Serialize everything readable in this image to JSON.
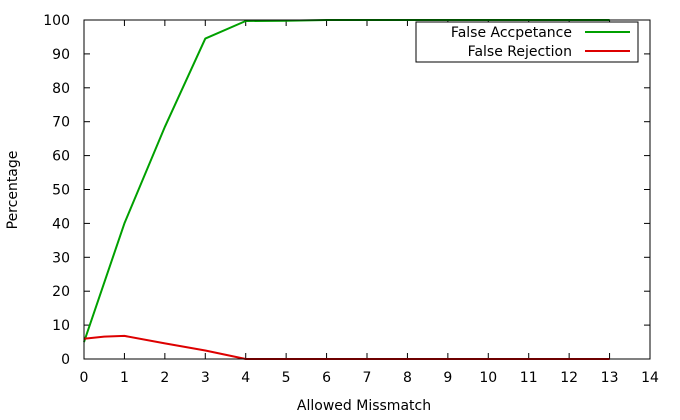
{
  "chart_data": {
    "type": "line",
    "title": "",
    "xlabel": "Allowed Missmatch",
    "ylabel": "Percentage",
    "xlim": [
      0,
      14
    ],
    "ylim": [
      0,
      100
    ],
    "xticks": [
      0,
      1,
      2,
      3,
      4,
      5,
      6,
      7,
      8,
      9,
      10,
      11,
      12,
      13,
      14
    ],
    "yticks": [
      0,
      10,
      20,
      30,
      40,
      50,
      60,
      70,
      80,
      90,
      100
    ],
    "grid": false,
    "legend_position": "top-right",
    "series": [
      {
        "name": "False Accpetance",
        "color": "#00a000",
        "x": [
          0,
          1,
          2,
          3,
          4,
          5,
          6,
          7,
          8,
          9,
          10,
          11,
          12,
          13
        ],
        "y": [
          5,
          40,
          68.5,
          94.5,
          99.7,
          99.8,
          100,
          100,
          100,
          100,
          100,
          100,
          100,
          100
        ]
      },
      {
        "name": "False Rejection",
        "color": "#dd0000",
        "x": [
          0,
          0.5,
          1,
          2,
          3,
          4,
          5,
          6,
          7,
          8,
          9,
          10,
          11,
          12,
          13
        ],
        "y": [
          6,
          6.6,
          6.8,
          4.6,
          2.5,
          0,
          0,
          0,
          0,
          0,
          0,
          0,
          0,
          0,
          0
        ]
      }
    ]
  }
}
